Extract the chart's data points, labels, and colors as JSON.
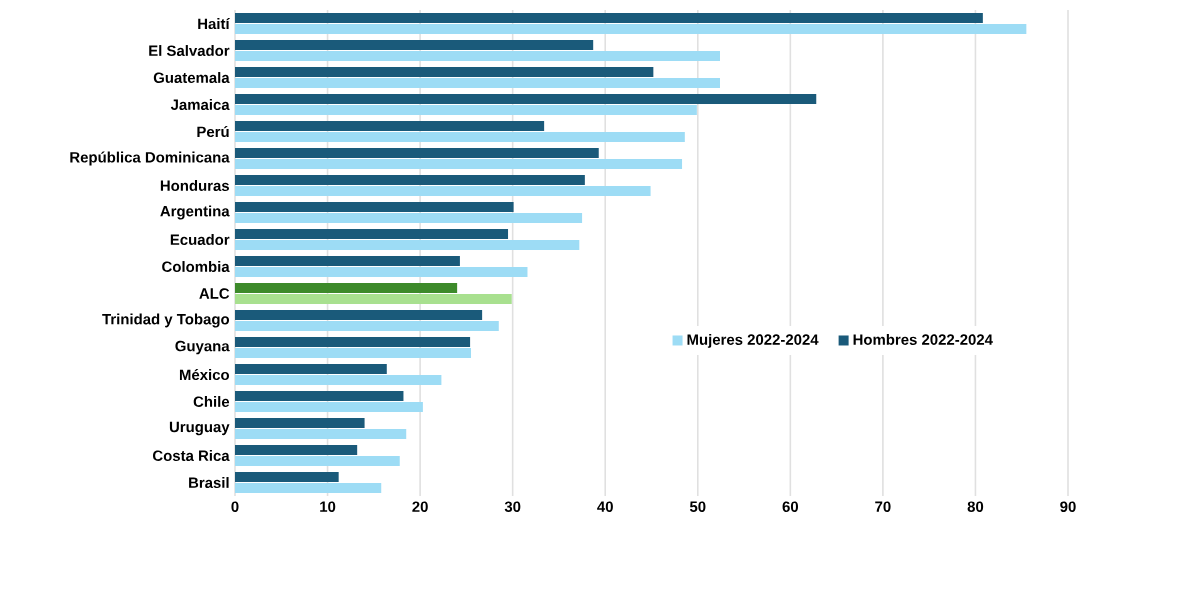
{
  "chart_data": {
    "type": "bar",
    "orientation": "horizontal",
    "categories": [
      "Haití",
      "El Salvador",
      "Guatemala",
      "Jamaica",
      "Perú",
      "República Dominicana",
      "Honduras",
      "Argentina",
      "Ecuador",
      "Colombia",
      "ALC",
      "Trinidad y Tobago",
      "Guyana",
      "México",
      "Chile",
      "Uruguay",
      "Costa Rica",
      "Brasil"
    ],
    "series": [
      {
        "name": "Mujeres 2022-2024",
        "color": "#9ddcf5",
        "colors": [
          "#9ddcf5",
          "#9ddcf5",
          "#9ddcf5",
          "#9ddcf5",
          "#9ddcf5",
          "#9ddcf5",
          "#9ddcf5",
          "#9ddcf5",
          "#9ddcf5",
          "#9ddcf5",
          "#a8e08f",
          "#9ddcf5",
          "#9ddcf5",
          "#9ddcf5",
          "#9ddcf5",
          "#9ddcf5",
          "#9ddcf5",
          "#9ddcf5"
        ],
        "values": [
          85.5,
          52.4,
          52.4,
          49.9,
          48.6,
          48.3,
          44.9,
          37.5,
          37.2,
          31.6,
          29.9,
          28.5,
          25.5,
          22.3,
          20.3,
          18.5,
          17.8,
          15.8
        ]
      },
      {
        "name": "Hombres 2022-2024",
        "color": "#1a5a7a",
        "colors": [
          "#1a5a7a",
          "#1a5a7a",
          "#1a5a7a",
          "#1a5a7a",
          "#1a5a7a",
          "#1a5a7a",
          "#1a5a7a",
          "#1a5a7a",
          "#1a5a7a",
          "#1a5a7a",
          "#3d8a2a",
          "#1a5a7a",
          "#1a5a7a",
          "#1a5a7a",
          "#1a5a7a",
          "#1a5a7a",
          "#1a5a7a",
          "#1a5a7a"
        ],
        "values": [
          80.8,
          38.7,
          45.2,
          62.8,
          33.4,
          39.3,
          37.8,
          30.1,
          29.5,
          24.3,
          24.0,
          26.7,
          25.4,
          16.4,
          18.2,
          14.0,
          13.2,
          11.2
        ]
      }
    ],
    "xlim": [
      0,
      90
    ],
    "xticks": [
      0,
      10,
      20,
      30,
      40,
      50,
      60,
      70,
      80,
      90
    ],
    "grid": "x",
    "legend": "right"
  }
}
